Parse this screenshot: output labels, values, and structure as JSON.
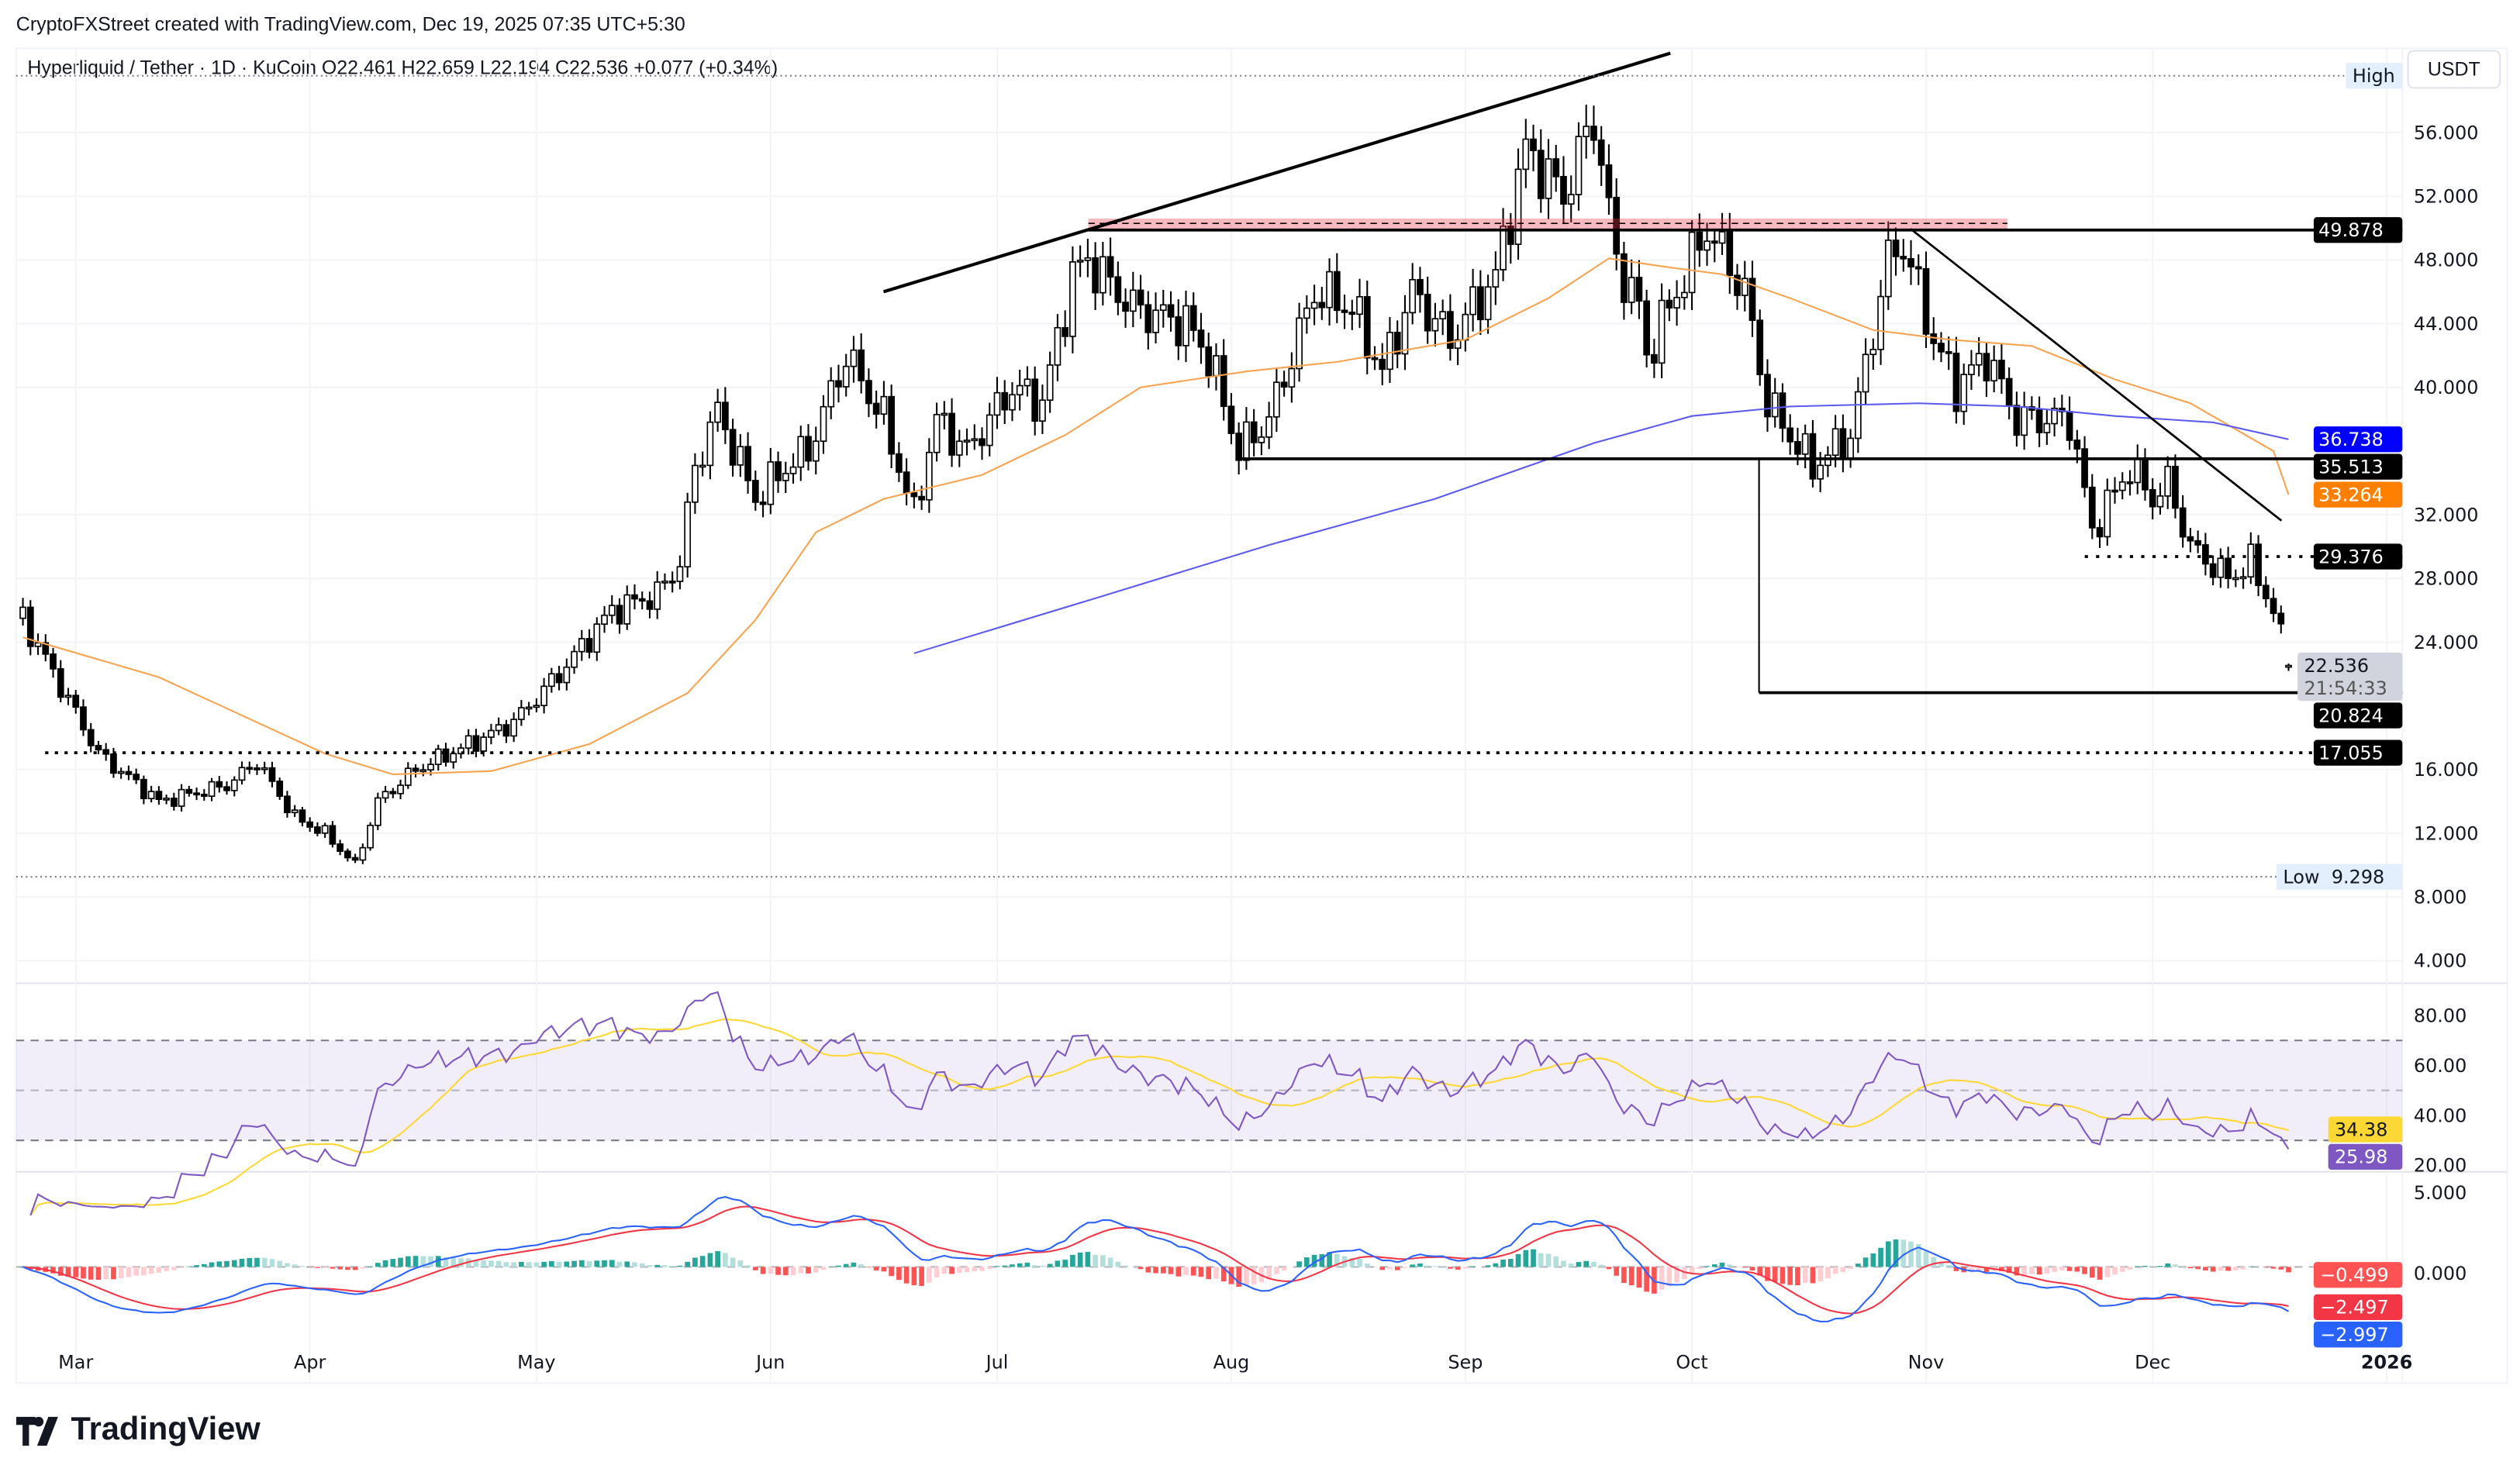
{
  "credit": "CryptoFXStreet created with TradingView.com, Dec 19, 2025 07:35 UTC+5:30",
  "legend": "Hyperliquid / Tether · 1D · KuCoin  O22.461  H22.659  L22.194  C22.536  +0.077 (+0.34%)",
  "currency": "USDT",
  "logo_text": "TradingView",
  "chart_data": {
    "type": "candlestick",
    "symbol": "Hyperliquid / Tether",
    "interval": "1D",
    "exchange": "KuCoin",
    "last_candle": {
      "date": "2025-12-19",
      "open": 22.461,
      "high": 22.659,
      "low": 22.194,
      "close": 22.536,
      "change": "+0.077 (+0.34%)"
    },
    "close_path": [
      [
        "2025-02-22",
        25.5
      ],
      [
        "2025-03-04",
        17
      ],
      [
        "2025-03-12",
        14
      ],
      [
        "2025-03-21",
        15
      ],
      [
        "2025-03-25",
        16.5
      ],
      [
        "2025-03-30",
        13
      ],
      [
        "2025-04-03",
        12
      ],
      [
        "2025-04-07",
        10
      ],
      [
        "2025-04-10",
        14
      ],
      [
        "2025-04-15",
        16
      ],
      [
        "2025-04-24",
        18
      ],
      [
        "2025-04-28",
        19
      ],
      [
        "2025-05-04",
        22
      ],
      [
        "2025-05-11",
        26
      ],
      [
        "2025-05-17",
        27
      ],
      [
        "2025-05-20",
        29
      ],
      [
        "2025-05-22",
        35
      ],
      [
        "2025-05-25",
        38.5
      ],
      [
        "2025-05-30",
        33
      ],
      [
        "2025-06-03",
        35
      ],
      [
        "2025-06-06",
        36
      ],
      [
        "2025-06-11",
        42
      ],
      [
        "2025-06-16",
        38
      ],
      [
        "2025-06-20",
        32
      ],
      [
        "2025-06-23",
        38
      ],
      [
        "2025-06-27",
        36
      ],
      [
        "2025-07-03",
        40
      ],
      [
        "2025-07-07",
        39
      ],
      [
        "2025-07-11",
        47
      ],
      [
        "2025-07-13",
        48
      ],
      [
        "2025-07-19",
        45
      ],
      [
        "2025-07-26",
        44
      ],
      [
        "2025-07-29",
        42
      ],
      [
        "2025-08-02",
        36
      ],
      [
        "2025-08-06",
        38
      ],
      [
        "2025-08-12",
        46
      ],
      [
        "2025-08-17",
        45
      ],
      [
        "2025-08-21",
        41
      ],
      [
        "2025-08-25",
        46
      ],
      [
        "2025-08-30",
        43
      ],
      [
        "2025-09-05",
        47
      ],
      [
        "2025-09-09",
        55
      ],
      [
        "2025-09-14",
        52
      ],
      [
        "2025-09-18",
        57
      ],
      [
        "2025-09-21",
        48
      ],
      [
        "2025-09-24",
        45
      ],
      [
        "2025-09-25",
        42
      ],
      [
        "2025-09-30",
        47
      ],
      [
        "2025-10-03",
        50
      ],
      [
        "2025-10-08",
        46
      ],
      [
        "2025-10-11",
        39
      ],
      [
        "2025-10-14",
        37
      ],
      [
        "2025-10-17",
        35
      ],
      [
        "2025-10-22",
        37
      ],
      [
        "2025-10-27",
        48
      ],
      [
        "2025-10-29",
        49
      ],
      [
        "2025-11-02",
        43
      ],
      [
        "2025-11-05",
        40
      ],
      [
        "2025-11-09",
        42
      ],
      [
        "2025-11-13",
        38
      ],
      [
        "2025-11-20",
        38
      ],
      [
        "2025-11-23",
        31
      ],
      [
        "2025-11-28",
        35
      ],
      [
        "2025-12-01",
        33
      ],
      [
        "2025-12-03",
        34
      ],
      [
        "2025-12-06",
        30
      ],
      [
        "2025-12-11",
        28
      ],
      [
        "2025-12-14",
        29
      ],
      [
        "2025-12-17",
        26
      ],
      [
        "2025-12-19",
        22.536
      ]
    ],
    "ma_50": [
      [
        "2025-02-22",
        24.3
      ],
      [
        "2025-03-12",
        21.8
      ],
      [
        "2025-04-03",
        17
      ],
      [
        "2025-04-12",
        15.7
      ],
      [
        "2025-04-25",
        15.9
      ],
      [
        "2025-05-08",
        17.6
      ],
      [
        "2025-05-21",
        20.8
      ],
      [
        "2025-05-30",
        25.4
      ],
      [
        "2025-06-07",
        30.9
      ],
      [
        "2025-06-16",
        33
      ],
      [
        "2025-06-29",
        34.5
      ],
      [
        "2025-07-10",
        37
      ],
      [
        "2025-07-20",
        40
      ],
      [
        "2025-08-03",
        41
      ],
      [
        "2025-08-15",
        41.6
      ],
      [
        "2025-09-01",
        43
      ],
      [
        "2025-09-12",
        45.6
      ],
      [
        "2025-09-20",
        48.1
      ],
      [
        "2025-09-27",
        47.6
      ],
      [
        "2025-10-05",
        47.1
      ],
      [
        "2025-10-14",
        45.6
      ],
      [
        "2025-10-25",
        43.6
      ],
      [
        "2025-11-04",
        43
      ],
      [
        "2025-11-15",
        42.6
      ],
      [
        "2025-11-26",
        40.5
      ],
      [
        "2025-12-06",
        39
      ],
      [
        "2025-12-17",
        36
      ],
      [
        "2025-12-19",
        33.264
      ]
    ],
    "ma_200": [
      [
        "2025-06-20",
        23.3
      ],
      [
        "2025-07-15",
        26.9
      ],
      [
        "2025-08-06",
        30.1
      ],
      [
        "2025-08-28",
        33
      ],
      [
        "2025-09-18",
        36.5
      ],
      [
        "2025-10-01",
        38.2
      ],
      [
        "2025-10-14",
        38.8
      ],
      [
        "2025-10-31",
        39
      ],
      [
        "2025-11-13",
        38.8
      ],
      [
        "2025-11-26",
        38.2
      ],
      [
        "2025-12-09",
        37.8
      ],
      [
        "2025-12-19",
        36.738
      ]
    ],
    "y_ticks": [
      "56.000",
      "52.000",
      "48.000",
      "44.000",
      "40.000",
      "32.000",
      "28.000",
      "24.000",
      "16.000",
      "12.000",
      "8.000",
      "4.000"
    ],
    "x_ticks": [
      "Mar",
      "Apr",
      "May",
      "Jun",
      "Jul",
      "Aug",
      "Sep",
      "Oct",
      "Nov",
      "Dec",
      "2026"
    ],
    "price_labels": [
      {
        "value": "49.878",
        "color": "#000000"
      },
      {
        "value": "36.738",
        "color": "#0000ff"
      },
      {
        "value": "35.513",
        "color": "#000000"
      },
      {
        "value": "33.264",
        "color": "#ff7f00"
      },
      {
        "value": "29.376",
        "color": "#000000"
      },
      {
        "value": "20.824",
        "color": "#000000"
      },
      {
        "value": "17.055",
        "color": "#000000"
      }
    ],
    "last_price": "22.536",
    "countdown": "21:54:33",
    "high_label": "High",
    "low_label": "Low",
    "low_value": "9.298",
    "resistance_zone": [
      49.878,
      50.6
    ],
    "rsi": {
      "y_ticks": [
        "80.00",
        "60.00",
        "40.00",
        "20.00"
      ],
      "rsi_value": "25.98",
      "ma_value": "34.38",
      "rsi_color": "#7e57c2",
      "ma_color": "#fdd835",
      "bands": [
        70,
        50,
        30
      ]
    },
    "macd": {
      "y_ticks": [
        "5.000",
        "0.000"
      ],
      "hist_value": "−0.499",
      "signal_value": "−2.497",
      "macd_value": "−2.997",
      "macd_color": "#2962ff",
      "signal_color": "#f23645"
    }
  }
}
